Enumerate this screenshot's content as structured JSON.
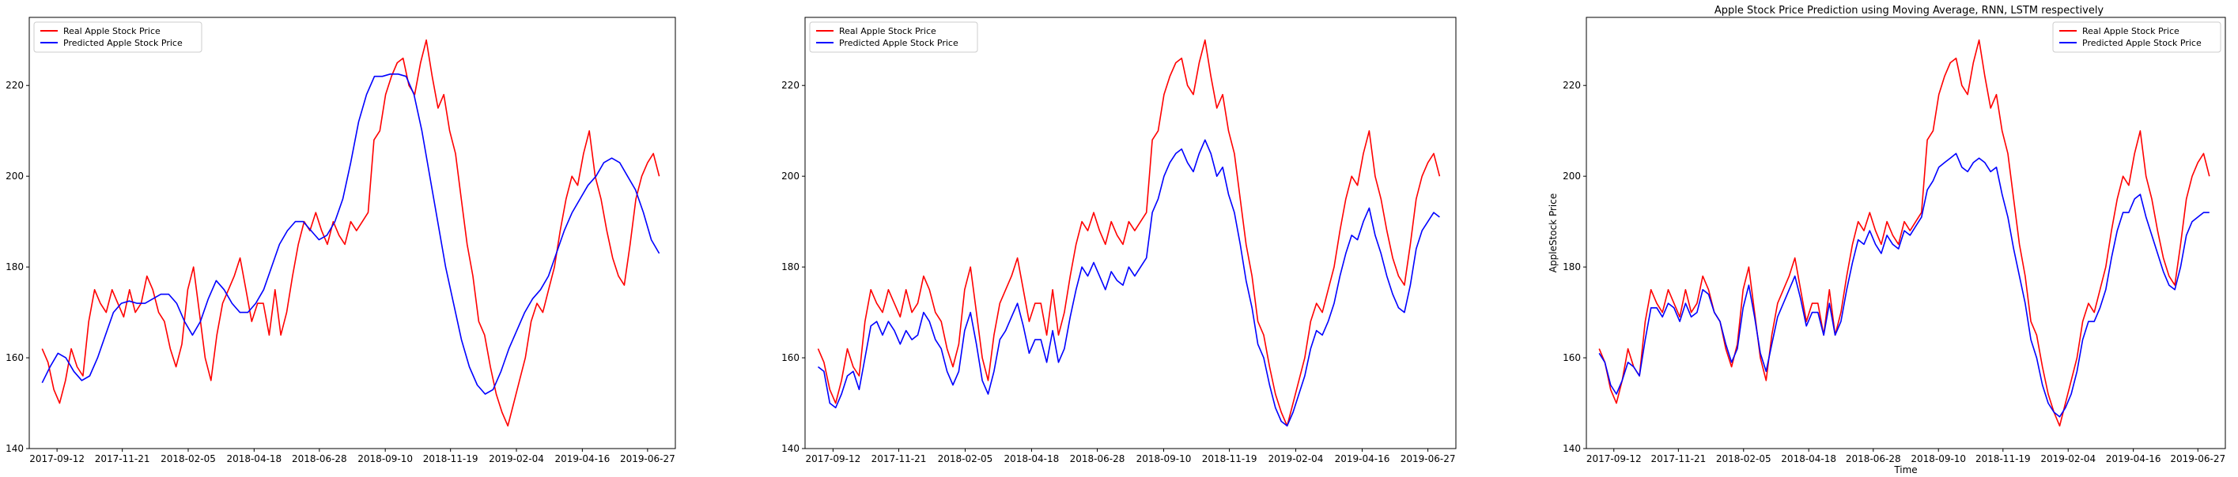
{
  "figure": {
    "title": "Apple Stock Price Prediction using Moving Average, RNN, LSTM respectively"
  },
  "chart_data": [
    {
      "type": "line",
      "title": "",
      "xlabel": "",
      "ylabel": "",
      "x_ticks": [
        "2017-09-12",
        "2017-11-21",
        "2018-02-05",
        "2018-04-18",
        "2018-06-28",
        "2018-09-10",
        "2018-11-19",
        "2019-02-04",
        "2019-04-16",
        "2019-06-27"
      ],
      "y_ticks": [
        140,
        160,
        180,
        200,
        220
      ],
      "ylim": [
        140,
        235
      ],
      "legend_position": "top-left",
      "series": [
        {
          "name": "Real Apple Stock Price",
          "color": "#ff0000",
          "values": [
            162,
            159,
            153,
            150,
            155,
            162,
            158,
            156,
            168,
            175,
            172,
            170,
            175,
            172,
            169,
            175,
            170,
            172,
            178,
            175,
            170,
            168,
            162,
            158,
            163,
            175,
            180,
            170,
            160,
            155,
            165,
            172,
            175,
            178,
            182,
            175,
            168,
            172,
            172,
            165,
            175,
            165,
            170,
            178,
            185,
            190,
            188,
            192,
            188,
            185,
            190,
            187,
            185,
            190,
            188,
            190,
            192,
            208,
            210,
            218,
            222,
            225,
            226,
            220,
            218,
            225,
            230,
            222,
            215,
            218,
            210,
            205,
            195,
            185,
            178,
            168,
            165,
            158,
            152,
            148,
            145,
            150,
            155,
            160,
            168,
            172,
            170,
            175,
            180,
            188,
            195,
            200,
            198,
            205,
            210,
            200,
            195,
            188,
            182,
            178,
            176,
            185,
            195,
            200,
            203,
            205,
            200
          ]
        },
        {
          "name": "Predicted Apple Stock Price",
          "color": "#0000ff",
          "values": [
            154.5,
            158,
            161,
            160,
            157,
            155,
            156,
            160,
            165,
            170,
            172,
            172.5,
            172,
            172,
            173,
            174,
            174,
            172,
            168,
            165,
            168,
            173,
            177,
            175,
            172,
            170,
            170,
            172,
            175,
            180,
            185,
            188,
            190,
            190,
            188,
            186,
            187,
            190,
            195,
            203,
            212,
            218,
            222,
            222,
            222.5,
            222.5,
            222,
            218,
            210,
            200,
            190,
            180,
            172,
            164,
            158,
            154,
            152,
            153,
            157,
            162,
            166,
            170,
            173,
            175,
            178,
            183,
            188,
            192,
            195,
            198,
            200,
            203,
            204,
            203,
            200,
            197,
            192,
            186,
            183
          ]
        }
      ]
    },
    {
      "type": "line",
      "title": "",
      "xlabel": "",
      "ylabel": "",
      "x_ticks": [
        "2017-09-12",
        "2017-11-21",
        "2018-02-05",
        "2018-04-18",
        "2018-06-28",
        "2018-09-10",
        "2018-11-19",
        "2019-02-04",
        "2019-04-16",
        "2019-06-27"
      ],
      "y_ticks": [
        140,
        160,
        180,
        200,
        220
      ],
      "ylim": [
        140,
        235
      ],
      "legend_position": "top-left",
      "series": [
        {
          "name": "Real Apple Stock Price",
          "color": "#ff0000",
          "values": [
            162,
            159,
            153,
            150,
            155,
            162,
            158,
            156,
            168,
            175,
            172,
            170,
            175,
            172,
            169,
            175,
            170,
            172,
            178,
            175,
            170,
            168,
            162,
            158,
            163,
            175,
            180,
            170,
            160,
            155,
            165,
            172,
            175,
            178,
            182,
            175,
            168,
            172,
            172,
            165,
            175,
            165,
            170,
            178,
            185,
            190,
            188,
            192,
            188,
            185,
            190,
            187,
            185,
            190,
            188,
            190,
            192,
            208,
            210,
            218,
            222,
            225,
            226,
            220,
            218,
            225,
            230,
            222,
            215,
            218,
            210,
            205,
            195,
            185,
            178,
            168,
            165,
            158,
            152,
            148,
            145,
            150,
            155,
            160,
            168,
            172,
            170,
            175,
            180,
            188,
            195,
            200,
            198,
            205,
            210,
            200,
            195,
            188,
            182,
            178,
            176,
            185,
            195,
            200,
            203,
            205,
            200
          ]
        },
        {
          "name": "Predicted Apple Stock Price",
          "color": "#0000ff",
          "values": [
            158,
            157,
            150,
            149,
            152,
            156,
            157,
            153,
            160,
            167,
            168,
            165,
            168,
            166,
            163,
            166,
            164,
            165,
            170,
            168,
            164,
            162,
            157,
            154,
            157,
            166,
            170,
            163,
            155,
            152,
            157,
            164,
            166,
            169,
            172,
            167,
            161,
            164,
            164,
            159,
            166,
            159,
            162,
            169,
            175,
            180,
            178,
            181,
            178,
            175,
            179,
            177,
            176,
            180,
            178,
            180,
            182,
            192,
            195,
            200,
            203,
            205,
            206,
            203,
            201,
            205,
            208,
            205,
            200,
            202,
            196,
            192,
            185,
            177,
            171,
            163,
            160,
            154,
            149,
            146,
            145,
            148,
            152,
            156,
            162,
            166,
            165,
            168,
            172,
            178,
            183,
            187,
            186,
            190,
            193,
            187,
            183,
            178,
            174,
            171,
            170,
            176,
            184,
            188,
            190,
            192,
            191
          ]
        }
      ]
    },
    {
      "type": "line",
      "title": "Apple Stock Price Prediction using Moving Average, RNN, LSTM respectively",
      "xlabel": "Time",
      "ylabel": "AppleStock Price",
      "x_ticks": [
        "2017-09-12",
        "2017-11-21",
        "2018-02-05",
        "2018-04-18",
        "2018-06-28",
        "2018-09-10",
        "2018-11-19",
        "2019-02-04",
        "2019-04-16",
        "2019-06-27"
      ],
      "y_ticks": [
        140,
        160,
        180,
        200,
        220
      ],
      "ylim": [
        140,
        235
      ],
      "legend_position": "top-right",
      "series": [
        {
          "name": "Real Apple Stock Price",
          "color": "#ff0000",
          "values": [
            162,
            159,
            153,
            150,
            155,
            162,
            158,
            156,
            168,
            175,
            172,
            170,
            175,
            172,
            169,
            175,
            170,
            172,
            178,
            175,
            170,
            168,
            162,
            158,
            163,
            175,
            180,
            170,
            160,
            155,
            165,
            172,
            175,
            178,
            182,
            175,
            168,
            172,
            172,
            165,
            175,
            165,
            170,
            178,
            185,
            190,
            188,
            192,
            188,
            185,
            190,
            187,
            185,
            190,
            188,
            190,
            192,
            208,
            210,
            218,
            222,
            225,
            226,
            220,
            218,
            225,
            230,
            222,
            215,
            218,
            210,
            205,
            195,
            185,
            178,
            168,
            165,
            158,
            152,
            148,
            145,
            150,
            155,
            160,
            168,
            172,
            170,
            175,
            180,
            188,
            195,
            200,
            198,
            205,
            210,
            200,
            195,
            188,
            182,
            178,
            176,
            185,
            195,
            200,
            203,
            205,
            200
          ]
        },
        {
          "name": "Predicted Apple Stock Price",
          "color": "#0000ff",
          "values": [
            161,
            159,
            154,
            152,
            155,
            159,
            158,
            156,
            164,
            171,
            171,
            169,
            172,
            171,
            168,
            172,
            169,
            170,
            175,
            174,
            170,
            168,
            163,
            159,
            162,
            171,
            176,
            169,
            161,
            157,
            163,
            169,
            172,
            175,
            178,
            173,
            167,
            170,
            170,
            165,
            172,
            165,
            168,
            175,
            181,
            186,
            185,
            188,
            185,
            183,
            187,
            185,
            184,
            188,
            187,
            189,
            191,
            197,
            199,
            202,
            203,
            204,
            205,
            202,
            201,
            203,
            204,
            203,
            201,
            202,
            196,
            191,
            184,
            178,
            172,
            164,
            160,
            154,
            150,
            148,
            147,
            149,
            152,
            157,
            164,
            168,
            168,
            171,
            175,
            182,
            188,
            192,
            192,
            195,
            196,
            191,
            187,
            183,
            179,
            176,
            175,
            180,
            187,
            190,
            191,
            192,
            192
          ]
        }
      ]
    }
  ]
}
